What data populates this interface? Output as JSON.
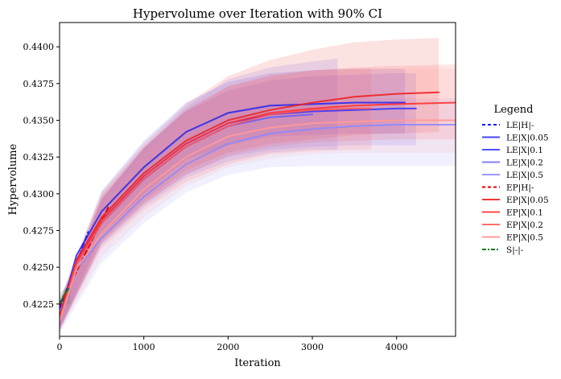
{
  "chart_data": {
    "type": "line",
    "title": "Hypervolume over Iteration with 90% CI",
    "xlabel": "Iteration",
    "ylabel": "Hypervolume",
    "xlim": [
      0,
      4700
    ],
    "ylim": [
      0.4203,
      0.44165
    ],
    "xticks": [
      0,
      1000,
      2000,
      3000,
      4000
    ],
    "yticks": [
      0.4225,
      0.425,
      0.4275,
      0.43,
      0.4325,
      0.435,
      0.4375,
      0.44
    ],
    "ytick_labels": [
      "0.4225",
      "0.4250",
      "0.4275",
      "0.4300",
      "0.4325",
      "0.4350",
      "0.4375",
      "0.4400"
    ],
    "grid": false,
    "legend": {
      "title": "Legend",
      "position": "right-outside"
    },
    "series": [
      {
        "name": "LE|H|-",
        "color": "#1a1aff",
        "style": "dashed",
        "alpha": 1.0,
        "x": [
          0,
          340
        ],
        "y": [
          0.4222,
          0.4274
        ]
      },
      {
        "name": "LE|X|0.05",
        "color": "#2424ee",
        "style": "solid",
        "alpha": 0.85,
        "x": [
          0,
          200,
          500,
          1000,
          1500,
          2000,
          2500,
          3000,
          3500,
          4100
        ],
        "y": [
          0.4216,
          0.4258,
          0.4288,
          0.4318,
          0.4342,
          0.4355,
          0.436,
          0.4361,
          0.4362,
          0.4362
        ],
        "ci": {
          "x": [
            0,
            500,
            1000,
            1500,
            2000,
            2500,
            3000,
            3500,
            4100
          ],
          "lo": [
            0.4208,
            0.4272,
            0.43,
            0.4323,
            0.4333,
            0.4339,
            0.434,
            0.4341,
            0.4341
          ],
          "hi": [
            0.4228,
            0.4302,
            0.4336,
            0.4362,
            0.4376,
            0.4382,
            0.4384,
            0.4385,
            0.4385
          ]
        }
      },
      {
        "name": "LE|X|0.1",
        "color": "#3333ff",
        "style": "solid",
        "alpha": 0.85,
        "x": [
          0,
          200,
          500,
          1000,
          1500,
          2000,
          2500,
          3000,
          3500,
          4000,
          4230
        ],
        "y": [
          0.4214,
          0.4254,
          0.4282,
          0.4312,
          0.4334,
          0.4348,
          0.4354,
          0.4356,
          0.4357,
          0.4358,
          0.4358
        ],
        "ci": {
          "x": [
            0,
            500,
            1000,
            1500,
            2000,
            2500,
            3000,
            3500,
            4000,
            4230
          ],
          "lo": [
            0.4207,
            0.4267,
            0.4293,
            0.4313,
            0.4325,
            0.433,
            0.4332,
            0.4333,
            0.4333,
            0.4333
          ],
          "hi": [
            0.4226,
            0.4297,
            0.4331,
            0.4356,
            0.437,
            0.4377,
            0.438,
            0.4381,
            0.4382,
            0.4382
          ]
        }
      },
      {
        "name": "LE|X|0.2",
        "color": "#5555ff",
        "style": "solid",
        "alpha": 0.75,
        "x": [
          0,
          200,
          500,
          1000,
          1500,
          2000,
          2500,
          3000
        ],
        "y": [
          0.4214,
          0.4252,
          0.428,
          0.431,
          0.4332,
          0.4346,
          0.4352,
          0.4354
        ],
        "ci": {
          "x": [
            0,
            500,
            1000,
            1500,
            2000,
            2500,
            3000,
            3300
          ],
          "lo": [
            0.4207,
            0.4265,
            0.4291,
            0.4311,
            0.4322,
            0.4328,
            0.433,
            0.433
          ],
          "hi": [
            0.4225,
            0.4296,
            0.4331,
            0.4359,
            0.4378,
            0.4386,
            0.439,
            0.4392
          ]
        }
      },
      {
        "name": "LE|X|0.5",
        "color": "#8888ff",
        "style": "solid",
        "alpha": 0.85,
        "x": [
          0,
          200,
          500,
          1000,
          1500,
          2000,
          2500,
          3000,
          3500,
          4000,
          4500,
          4700
        ],
        "y": [
          0.4212,
          0.4248,
          0.427,
          0.4298,
          0.432,
          0.4334,
          0.4341,
          0.4344,
          0.4346,
          0.4347,
          0.4347,
          0.4347
        ],
        "ci": {
          "x": [
            0,
            500,
            1000,
            1500,
            2000,
            2500,
            3000,
            3500,
            4000,
            4500,
            4700
          ],
          "lo": [
            0.4205,
            0.4253,
            0.428,
            0.4301,
            0.4313,
            0.4318,
            0.4319,
            0.4319,
            0.4319,
            0.4319,
            0.4319
          ],
          "hi": [
            0.4222,
            0.4287,
            0.4318,
            0.4342,
            0.4356,
            0.4362,
            0.4364,
            0.4365,
            0.4365,
            0.4365,
            0.4365
          ]
        }
      },
      {
        "name": "EP|H|-",
        "color": "#dd0000",
        "style": "dashed",
        "alpha": 1.0,
        "x": [
          0,
          580
        ],
        "y": [
          0.4224,
          0.4291
        ]
      },
      {
        "name": "EP|X|0.05",
        "color": "#ee2222",
        "style": "solid",
        "alpha": 0.9,
        "x": [
          0,
          200,
          500,
          1000,
          1500,
          2000,
          2500,
          3000,
          3500,
          4000,
          4500
        ],
        "y": [
          0.4216,
          0.4255,
          0.4284,
          0.4314,
          0.4336,
          0.435,
          0.4357,
          0.4362,
          0.4366,
          0.4368,
          0.4369
        ],
        "ci": {
          "x": [
            0,
            500,
            1000,
            1500,
            2000,
            2500,
            3000,
            3500,
            4000,
            4500
          ],
          "lo": [
            0.4208,
            0.4268,
            0.4295,
            0.4316,
            0.4328,
            0.4334,
            0.4337,
            0.434,
            0.4341,
            0.4342
          ],
          "hi": [
            0.4227,
            0.4301,
            0.4334,
            0.4361,
            0.438,
            0.4391,
            0.4398,
            0.4403,
            0.4405,
            0.4406
          ]
        }
      },
      {
        "name": "EP|X|0.1",
        "color": "#ff3333",
        "style": "solid",
        "alpha": 0.9,
        "x": [
          0,
          200,
          500,
          1000,
          1500,
          2000,
          2500,
          3000,
          3500,
          4000,
          4700
        ],
        "y": [
          0.4215,
          0.4253,
          0.4282,
          0.4312,
          0.4334,
          0.4348,
          0.4355,
          0.4358,
          0.436,
          0.4361,
          0.4362
        ],
        "ci": {
          "x": [
            0,
            500,
            1000,
            1500,
            2000,
            2500,
            3000,
            3500,
            4000,
            4700
          ],
          "lo": [
            0.4208,
            0.4266,
            0.4293,
            0.4313,
            0.4326,
            0.4332,
            0.4335,
            0.4336,
            0.4337,
            0.4337
          ],
          "hi": [
            0.4226,
            0.4299,
            0.4332,
            0.4357,
            0.4373,
            0.438,
            0.4384,
            0.4386,
            0.4387,
            0.4388
          ]
        }
      },
      {
        "name": "EP|X|0.2",
        "color": "#ff5555",
        "style": "solid",
        "alpha": 0.85,
        "x": [
          0,
          200,
          500,
          1000,
          1500,
          2000,
          2500,
          3000,
          3500,
          3700
        ],
        "y": [
          0.4214,
          0.4252,
          0.428,
          0.431,
          0.4332,
          0.4346,
          0.4354,
          0.4357,
          0.4358,
          0.4358
        ],
        "ci": {
          "x": [
            0,
            500,
            1000,
            1500,
            2000,
            2500,
            3000,
            3500,
            3700
          ],
          "lo": [
            0.4207,
            0.4263,
            0.4289,
            0.4308,
            0.432,
            0.4327,
            0.4329,
            0.433,
            0.433
          ],
          "hi": [
            0.4225,
            0.4297,
            0.4331,
            0.4357,
            0.4373,
            0.4381,
            0.4384,
            0.4385,
            0.4385
          ]
        }
      },
      {
        "name": "EP|X|0.5",
        "color": "#ff9999",
        "style": "solid",
        "alpha": 0.95,
        "x": [
          0,
          200,
          500,
          1000,
          1500,
          2000,
          2500,
          3000,
          3500,
          4000,
          4700
        ],
        "y": [
          0.4213,
          0.4249,
          0.4273,
          0.4303,
          0.4325,
          0.4339,
          0.4345,
          0.4348,
          0.4349,
          0.435,
          0.435
        ],
        "ci": {
          "x": [
            0,
            500,
            1000,
            1500,
            2000,
            2500,
            3000,
            3500,
            4000,
            4700
          ],
          "lo": [
            0.4206,
            0.4257,
            0.4284,
            0.4305,
            0.4318,
            0.4324,
            0.4327,
            0.4328,
            0.4328,
            0.4328
          ],
          "hi": [
            0.4223,
            0.4292,
            0.4327,
            0.4354,
            0.437,
            0.4378,
            0.4382,
            0.4384,
            0.4385,
            0.4385
          ]
        }
      },
      {
        "name": "S|-|-",
        "color": "#1a7a1a",
        "style": "dashdot",
        "alpha": 1.0,
        "x": [
          0,
          60,
          120
        ],
        "y": [
          0.4225,
          0.4232,
          0.4236
        ],
        "ci": {
          "x": [
            0,
            60,
            130
          ],
          "lo": [
            0.4222,
            0.4224,
            0.4225
          ],
          "hi": [
            0.4232,
            0.4236,
            0.4238
          ]
        }
      }
    ]
  }
}
